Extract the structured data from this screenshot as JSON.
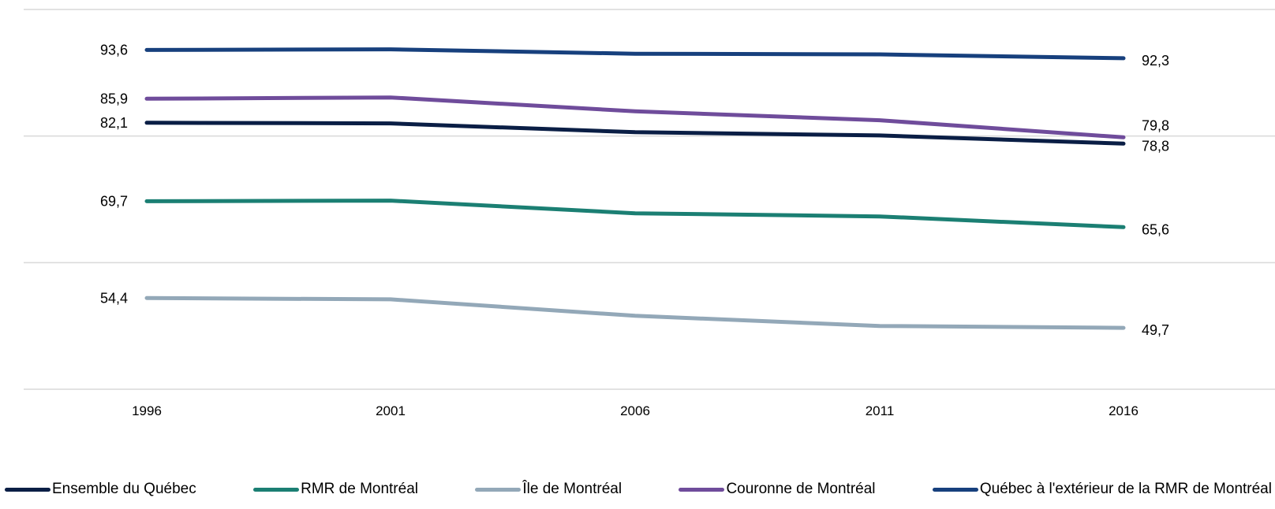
{
  "chart_data": {
    "type": "line",
    "title": "",
    "xlabel": "",
    "ylabel": "",
    "categories": [
      "1996",
      "2001",
      "2006",
      "2011",
      "2016"
    ],
    "ylim": [
      40,
      100
    ],
    "grid": "horizontal",
    "legend_position": "bottom",
    "series": [
      {
        "name": "Ensemble du Québec",
        "color": "#0a1e45",
        "values": [
          82.1,
          82.0,
          80.6,
          80.1,
          78.8
        ],
        "labels": {
          "first": "82,1",
          "last": "78,8"
        }
      },
      {
        "name": "RMR de Montréal",
        "color": "#1b7f73",
        "values": [
          69.7,
          69.8,
          67.8,
          67.3,
          65.6
        ],
        "labels": {
          "first": "69,7",
          "last": "65,6"
        }
      },
      {
        "name": "Île de Montréal",
        "color": "#93a8b8",
        "values": [
          54.4,
          54.2,
          51.6,
          50.0,
          49.7
        ],
        "labels": {
          "first": "54,4",
          "last": "49,7"
        }
      },
      {
        "name": "Couronne de Montréal",
        "color": "#6f4c9b",
        "values": [
          85.9,
          86.1,
          83.9,
          82.5,
          79.8
        ],
        "labels": {
          "first": "85,9",
          "last": "79,8"
        }
      },
      {
        "name": "Québec à l'extérieur de la RMR de Montréal",
        "color": "#17407d",
        "values": [
          93.6,
          93.7,
          93.0,
          92.9,
          92.3
        ],
        "labels": {
          "first": "93,6",
          "last": "92,3"
        }
      }
    ]
  }
}
